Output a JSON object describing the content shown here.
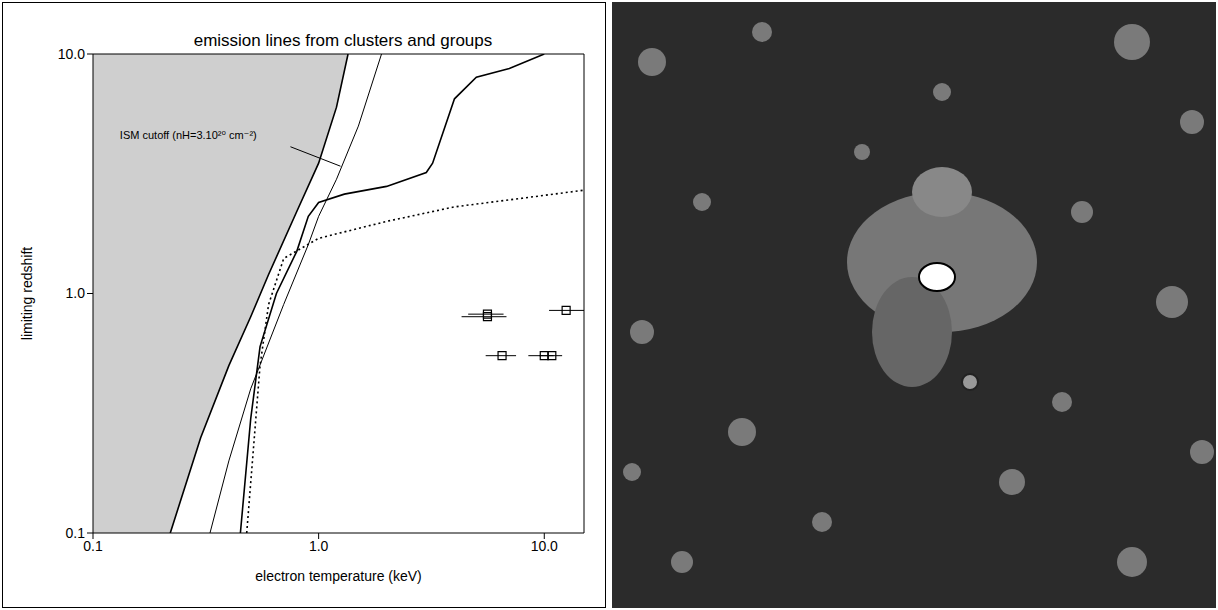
{
  "chart_data": {
    "type": "line",
    "title": "emission lines from clusters and groups",
    "x_label": "electron temperature (keV)",
    "y_label": "limiting redshift",
    "log": true,
    "grid": false,
    "xlim": [
      0.1,
      15
    ],
    "ylim": [
      0.1,
      10
    ],
    "xticks": [
      0.1,
      {
        "value": 1,
        "label": "1.0"
      },
      {
        "value": 10,
        "label": "10.0"
      }
    ],
    "yticks": [
      0.1,
      {
        "value": 1,
        "label": "1.0"
      },
      {
        "value": 10,
        "label": "10.0"
      }
    ],
    "shaded_region": {
      "color": "#cfcfcf",
      "x": [
        0.22,
        0.3,
        0.4,
        0.5,
        0.6,
        0.8,
        1.0,
        1.2,
        1.35
      ],
      "y": [
        0.1,
        0.25,
        0.5,
        0.8,
        1.2,
        2.2,
        3.5,
        6,
        10
      ]
    },
    "annotation": {
      "text": "ISM cutoff (nH=3.10²⁰ cm⁻²)",
      "x": 0.125,
      "y": 4.6,
      "arrow_from": [
        0.75,
        4.1
      ],
      "arrow_to": [
        1.25,
        3.4
      ]
    },
    "series": [
      {
        "color": "#000000",
        "line_style": "solid",
        "marker": "none",
        "x": [
          0.22,
          0.3,
          0.4,
          0.5,
          0.6,
          0.8,
          1.0,
          1.2,
          1.35
        ],
        "y": [
          0.1,
          0.25,
          0.5,
          0.8,
          1.2,
          2.2,
          3.5,
          6,
          10
        ]
      },
      {
        "color": "#000000",
        "line_style": "thin",
        "marker": "none",
        "x": [
          0.33,
          0.4,
          0.5,
          0.7,
          0.9,
          1.0,
          1.2,
          1.5,
          1.9
        ],
        "y": [
          0.1,
          0.2,
          0.4,
          0.9,
          1.6,
          2.1,
          3.0,
          5,
          10
        ]
      },
      {
        "color": "#000000",
        "line_style": "solid",
        "marker": "none",
        "x": [
          0.45,
          0.5,
          0.55,
          0.65,
          0.8,
          0.9,
          1.0,
          1.3,
          2.0,
          3.0,
          3.2,
          4,
          5,
          7,
          10
        ],
        "y": [
          0.1,
          0.3,
          0.6,
          1.0,
          1.5,
          2.1,
          2.4,
          2.6,
          2.8,
          3.2,
          3.5,
          6.5,
          8,
          8.7,
          10
        ]
      },
      {
        "color": "#000000",
        "line_style": "dotted",
        "marker": "none",
        "x": [
          0.48,
          0.55,
          0.6,
          0.7,
          1.0,
          2,
          4,
          8,
          15
        ],
        "y": [
          0.1,
          0.5,
          0.9,
          1.4,
          1.7,
          2.0,
          2.3,
          2.5,
          2.7
        ]
      },
      {
        "type": "scatter",
        "color": "#000000",
        "line_style": "none",
        "marker": "square",
        "x": [
          5.6,
          5.6,
          6.5,
          10,
          10.8,
          12.5
        ],
        "y": [
          0.8,
          0.82,
          0.55,
          0.55,
          0.55,
          0.85
        ],
        "xerr": [
          [
            1.3,
            1.2
          ],
          [
            1.0,
            1.0
          ],
          [
            1.0,
            1.0
          ],
          [
            1.5,
            1.0
          ],
          [
            1.3,
            1.2
          ],
          [
            2.0,
            2.5
          ]
        ]
      }
    ]
  }
}
